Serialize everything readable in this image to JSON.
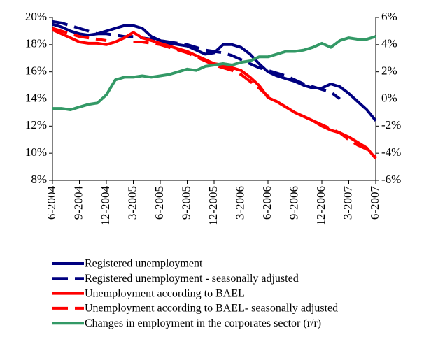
{
  "chart_data": {
    "type": "line",
    "categories": [
      "6-2004",
      null,
      null,
      "9-2004",
      null,
      null,
      "12-2004",
      null,
      null,
      "3-2005",
      null,
      null,
      "6-2005",
      null,
      null,
      "9-2005",
      null,
      null,
      "12-2005",
      null,
      null,
      "3-2006",
      null,
      null,
      "6-2006",
      null,
      null,
      "9-2006",
      null,
      null,
      "12-2006",
      null,
      null,
      "3-2007",
      null,
      null,
      "6-2007"
    ],
    "ylim": [
      8,
      20
    ],
    "yticks": [
      {
        "value": 8,
        "label": "8%"
      },
      {
        "value": 10,
        "label": "10%"
      },
      {
        "value": 12,
        "label": "12%"
      },
      {
        "value": 14,
        "label": "14%"
      },
      {
        "value": 16,
        "label": "16%"
      },
      {
        "value": 18,
        "label": "18%"
      },
      {
        "value": 20,
        "label": "20%"
      }
    ],
    "y2lim": [
      -6,
      6
    ],
    "y2ticks": [
      {
        "value": -6,
        "label": "-6%"
      },
      {
        "value": -4,
        "label": "-4%"
      },
      {
        "value": -2,
        "label": "-2%"
      },
      {
        "value": 0,
        "label": "0%"
      },
      {
        "value": 2,
        "label": "2%"
      },
      {
        "value": 4,
        "label": "4%"
      },
      {
        "value": 6,
        "label": "6%"
      }
    ],
    "series": [
      {
        "name": "Registered unemployment",
        "color": "#000080",
        "dashed": false,
        "values": [
          19.5,
          19.3,
          19.0,
          18.8,
          18.7,
          18.8,
          19.0,
          19.2,
          19.4,
          19.4,
          19.2,
          18.6,
          18.3,
          18.1,
          18.0,
          17.9,
          17.6,
          17.3,
          17.4,
          18.0,
          18.0,
          17.8,
          17.3,
          16.6,
          16.0,
          15.7,
          15.5,
          15.3,
          15.0,
          14.8,
          14.8,
          15.1,
          14.9,
          14.4,
          13.8,
          13.2,
          12.4
        ]
      },
      {
        "name": "Registered unemployment - seasonally adjusted",
        "color": "#000080",
        "dashed": true,
        "values": [
          19.7,
          19.6,
          19.4,
          19.2,
          19.0,
          18.8,
          18.8,
          18.7,
          18.6,
          18.6,
          18.5,
          18.4,
          18.3,
          18.2,
          18.1,
          18.0,
          17.8,
          17.6,
          17.5,
          17.4,
          17.2,
          16.9,
          16.6,
          16.3,
          16.1,
          15.9,
          15.7,
          15.4,
          15.1,
          14.9,
          14.7,
          14.5,
          14.0,
          null,
          null,
          null,
          null
        ]
      },
      {
        "name": "Unemployment according to BAEL",
        "color": "#ff0000",
        "dashed": false,
        "values": [
          19.1,
          18.8,
          18.5,
          18.2,
          18.1,
          18.1,
          18.0,
          18.2,
          18.5,
          18.9,
          18.5,
          18.3,
          18.1,
          17.9,
          17.7,
          17.5,
          17.2,
          16.9,
          16.6,
          16.5,
          16.3,
          16.1,
          15.6,
          15.0,
          14.1,
          13.8,
          13.4,
          13.0,
          12.7,
          12.4,
          12.0,
          11.7,
          11.5,
          11.2,
          10.8,
          10.4,
          9.6
        ]
      },
      {
        "name": "Unemployment according to BAEL- seasonally adjusted",
        "color": "#ff0000",
        "dashed": true,
        "values": [
          19.2,
          19.0,
          18.8,
          18.6,
          18.5,
          18.4,
          18.3,
          null,
          null,
          18.2,
          18.2,
          18.1,
          18.0,
          17.8,
          17.6,
          17.4,
          17.1,
          16.8,
          16.5,
          16.3,
          16.1,
          15.8,
          15.3,
          14.8,
          14.2,
          13.8,
          13.4,
          13.0,
          12.7,
          12.4,
          12.1,
          11.8,
          11.5,
          11.0,
          10.6,
          10.3,
          9.7
        ]
      },
      {
        "name": "Changes in employment in the corporates sector (r/r)",
        "color": "#339966",
        "dashed": false,
        "axis": "y2",
        "values": [
          -0.7,
          -0.7,
          -0.8,
          -0.6,
          -0.4,
          -0.3,
          0.3,
          1.4,
          1.6,
          1.6,
          1.7,
          1.6,
          1.7,
          1.8,
          2.0,
          2.2,
          2.1,
          2.4,
          2.5,
          2.6,
          2.5,
          2.7,
          2.8,
          3.1,
          3.1,
          3.3,
          3.5,
          3.5,
          3.6,
          3.8,
          4.1,
          3.8,
          4.3,
          4.5,
          4.4,
          4.4,
          4.6
        ]
      }
    ]
  }
}
